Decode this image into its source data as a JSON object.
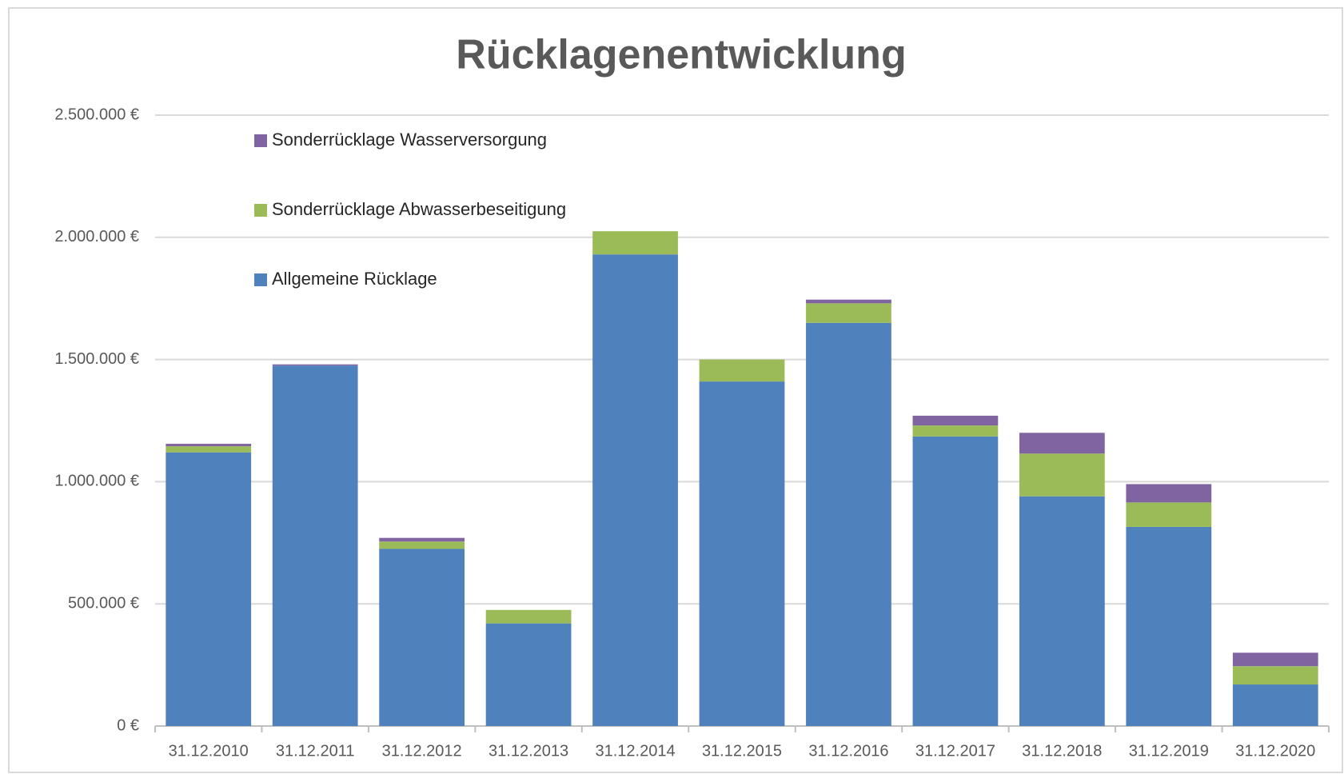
{
  "chart_data": {
    "type": "stacked_bar",
    "title": "Rücklagenentwicklung",
    "categories": [
      "31.12.2010",
      "31.12.2011",
      "31.12.2012",
      "31.12.2013",
      "31.12.2014",
      "31.12.2015",
      "31.12.2016",
      "31.12.2017",
      "31.12.2018",
      "31.12.2019",
      "31.12.2020"
    ],
    "series": [
      {
        "name": "Allgemeine Rücklage",
        "color": "#4f81bd",
        "values": [
          1120000,
          1475000,
          725000,
          420000,
          1930000,
          1410000,
          1650000,
          1185000,
          940000,
          815000,
          170000
        ]
      },
      {
        "name": "Sonderrücklage Abwasserbeseitigung",
        "color": "#9bbb59",
        "values": [
          25000,
          0,
          30000,
          55000,
          95000,
          90000,
          80000,
          45000,
          175000,
          100000,
          75000
        ]
      },
      {
        "name": "Sonderrücklage Wasserversorgung",
        "color": "#8064a2",
        "values": [
          10000,
          5000,
          15000,
          0,
          0,
          0,
          15000,
          40000,
          85000,
          75000,
          55000
        ]
      }
    ],
    "ylim": [
      0,
      2500000
    ],
    "yticks": [
      {
        "value": 0,
        "label": "0 €"
      },
      {
        "value": 500000,
        "label": "500.000 €"
      },
      {
        "value": 1000000,
        "label": "1.000.000 €"
      },
      {
        "value": 1500000,
        "label": "1.500.000 €"
      },
      {
        "value": 2000000,
        "label": "2.000.000 €"
      },
      {
        "value": 2500000,
        "label": "2.500.000 €"
      }
    ],
    "grid": true,
    "legend": "top-left"
  }
}
